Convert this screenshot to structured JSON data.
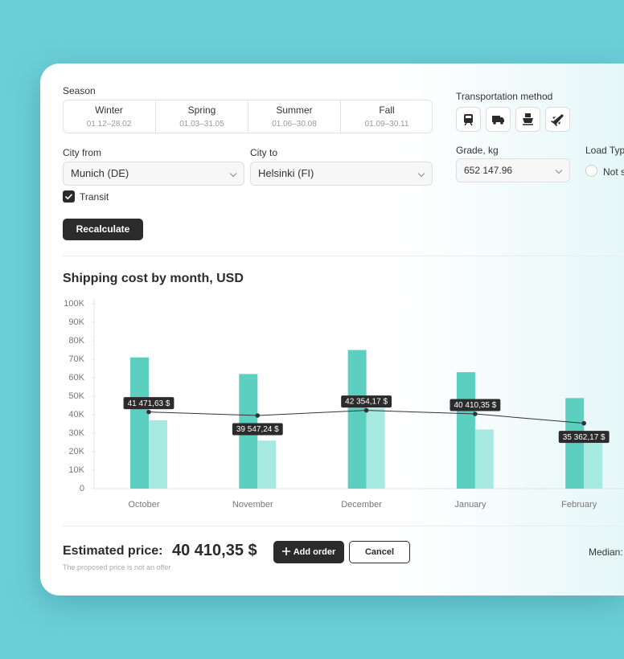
{
  "form": {
    "season": {
      "label": "Season",
      "options": [
        {
          "name": "Winter",
          "dates": "01.12–28.02"
        },
        {
          "name": "Spring",
          "dates": "01.03–31.05"
        },
        {
          "name": "Summer",
          "dates": "01.06–30.08"
        },
        {
          "name": "Fall",
          "dates": "01.09–30.11"
        }
      ]
    },
    "city_from": {
      "label": "City from",
      "value": "Munich (DE)"
    },
    "city_to": {
      "label": "City to",
      "value": "Helsinki (FI)"
    },
    "transit": "Transit",
    "recalculate": "Recalculate",
    "transportation_method": "Transportation method",
    "grade": {
      "label": "Grade, kg",
      "value": "652 147.96"
    },
    "load_type": {
      "label": "Load Typ",
      "option": "Not s"
    }
  },
  "chart_data": {
    "type": "bar",
    "title": "Shipping cost by month, USD",
    "categories": [
      "October",
      "November",
      "December",
      "January",
      "February"
    ],
    "series": [
      {
        "color": "#5ccfc1",
        "values": [
          71000,
          62000,
          75000,
          63000,
          49000
        ]
      },
      {
        "color": "#a6e9e1",
        "values": [
          37000,
          26000,
          43500,
          32000,
          24500
        ]
      },
      {
        "type": "line",
        "color": "#333333",
        "values": [
          41471.63,
          39547.24,
          42354.17,
          40410.35,
          35362.17
        ],
        "value_labels": [
          "41 471,63 $",
          "39 547,24 $",
          "42 354,17 $",
          "40 410,35 $",
          "35 362,17 $"
        ]
      }
    ],
    "ylim": [
      0,
      100000
    ],
    "yticks": [
      0,
      {
        "value": 10000,
        "label": "10K"
      },
      {
        "value": 20000,
        "label": "20K"
      },
      {
        "value": 30000,
        "label": "30K"
      },
      {
        "value": 40000,
        "label": "40K"
      },
      {
        "value": 50000,
        "label": "50K"
      },
      {
        "value": 60000,
        "label": "60K"
      },
      {
        "value": 70000,
        "label": "70K"
      },
      {
        "value": 80000,
        "label": "80K"
      },
      {
        "value": 90000,
        "label": "90K"
      },
      {
        "value": 100000,
        "label": "100K"
      }
    ],
    "grid": false
  },
  "footer": {
    "estimated_label": "Estimated price:",
    "estimated_value": "40 410,35 $",
    "add_order": "Add order",
    "cancel": "Cancel",
    "note": "The proposed price is not an offer",
    "median": "Median:"
  }
}
